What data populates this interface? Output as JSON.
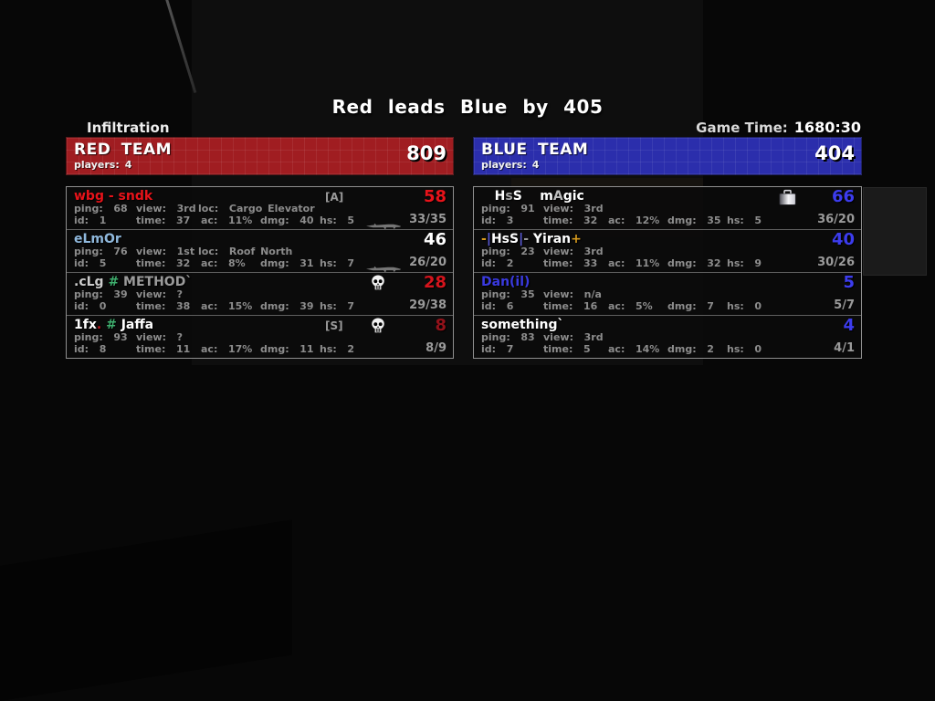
{
  "scene": {
    "title": "Red leads Blue by 405",
    "mode": "Infiltration",
    "game_time_label": "Game Time:",
    "game_time": "1680:30"
  },
  "colors": {
    "red_header": "#a01d21",
    "blue_header": "#2b2eac",
    "red_score_text": "#e8131a",
    "blue_score_text": "#3c3cee",
    "stat_text": "#8c8c8c"
  },
  "icons": {
    "skull": "skull-icon",
    "briefcase": "briefcase-icon",
    "weapon": "weapon-icon"
  },
  "teams": [
    {
      "name": "RED TEAM",
      "score": "809",
      "players_label": "players:",
      "players": "4",
      "rows": [
        {
          "name_segments": [
            {
              "t": "wbg - sndk",
              "c": "#e8131a"
            }
          ],
          "tag": "[A]",
          "skull": false,
          "briefcase": false,
          "weapon": true,
          "score": "58",
          "score_color": "#e8131a",
          "frags": "33/35",
          "stats1": [
            {
              "l": "ping:",
              "v": "68"
            },
            {
              "l": "view:",
              "v": "3rd"
            },
            {
              "l": "loc:",
              "v": "Cargo Elevator"
            }
          ],
          "stats2": [
            {
              "l": "id:",
              "v": "1"
            },
            {
              "l": "time:",
              "v": "37"
            },
            {
              "l": "ac:",
              "v": "11%"
            },
            {
              "l": "dmg:",
              "v": "40"
            },
            {
              "l": "hs:",
              "v": "5"
            }
          ]
        },
        {
          "name_segments": [
            {
              "t": "eLmOr",
              "c": "#8fb8dc"
            }
          ],
          "tag": "",
          "skull": false,
          "briefcase": false,
          "weapon": true,
          "score": "46",
          "score_color": "#ffffff",
          "frags": "26/20",
          "stats1": [
            {
              "l": "ping:",
              "v": "76"
            },
            {
              "l": "view:",
              "v": "1st"
            },
            {
              "l": "loc:",
              "v": "Roof North"
            }
          ],
          "stats2": [
            {
              "l": "id:",
              "v": "5"
            },
            {
              "l": "time:",
              "v": "32"
            },
            {
              "l": "ac:",
              "v": "8%"
            },
            {
              "l": "dmg:",
              "v": "31"
            },
            {
              "l": "hs:",
              "v": "7"
            }
          ]
        },
        {
          "name_segments": [
            {
              "t": ".cLg ",
              "c": "#cccccc"
            },
            {
              "t": "# ",
              "c": "#3fae6e"
            },
            {
              "t": "METHOD`",
              "c": "#9b9b9b"
            }
          ],
          "tag": "",
          "skull": true,
          "briefcase": false,
          "weapon": false,
          "score": "28",
          "score_color": "#d4141c",
          "frags": "29/38",
          "stats1": [
            {
              "l": "ping:",
              "v": "39"
            },
            {
              "l": "view:",
              "v": "?"
            }
          ],
          "stats2": [
            {
              "l": "id:",
              "v": "0"
            },
            {
              "l": "time:",
              "v": "38"
            },
            {
              "l": "ac:",
              "v": "15%"
            },
            {
              "l": "dmg:",
              "v": "39"
            },
            {
              "l": "hs:",
              "v": "7"
            }
          ]
        },
        {
          "name_segments": [
            {
              "t": "1fx",
              "c": "#ffffff"
            },
            {
              "t": ". ",
              "c": "#c0151c"
            },
            {
              "t": "# ",
              "c": "#3fae6e"
            },
            {
              "t": "Jaffa",
              "c": "#ffffff"
            }
          ],
          "tag": "[S]",
          "skull": true,
          "briefcase": false,
          "weapon": false,
          "score": "8",
          "score_color": "#93121a",
          "frags": "8/9",
          "stats1": [
            {
              "l": "ping:",
              "v": "93"
            },
            {
              "l": "view:",
              "v": "?"
            }
          ],
          "stats2": [
            {
              "l": "id:",
              "v": "8"
            },
            {
              "l": "time:",
              "v": "11"
            },
            {
              "l": "ac:",
              "v": "17%"
            },
            {
              "l": "dmg:",
              "v": "11"
            },
            {
              "l": "hs:",
              "v": "2"
            }
          ]
        }
      ]
    },
    {
      "name": "BLUE TEAM",
      "score": "404",
      "players_label": "players:",
      "players": "4",
      "rows": [
        {
          "name_segments": [
            {
              "t": "   H",
              "c": "#ffffff"
            },
            {
              "t": "s",
              "c": "#a8a8a8"
            },
            {
              "t": "S",
              "c": "#ffffff"
            },
            {
              "t": "    m",
              "c": "#ffffff"
            },
            {
              "t": "A",
              "c": "#bcbcbc"
            },
            {
              "t": "gic",
              "c": "#ffffff"
            }
          ],
          "tag": "",
          "skull": false,
          "briefcase": true,
          "weapon": false,
          "score": "66",
          "score_color": "#3c3cee",
          "frags": "36/20",
          "stats1": [
            {
              "l": "ping:",
              "v": "91"
            },
            {
              "l": "view:",
              "v": "3rd"
            }
          ],
          "stats2": [
            {
              "l": "id:",
              "v": "3"
            },
            {
              "l": "time:",
              "v": "32"
            },
            {
              "l": "ac:",
              "v": "12%"
            },
            {
              "l": "dmg:",
              "v": "35"
            },
            {
              "l": "hs:",
              "v": "5"
            }
          ]
        },
        {
          "name_segments": [
            {
              "t": "-",
              "c": "#d79b1e"
            },
            {
              "t": "|",
              "c": "#5b5bd8"
            },
            {
              "t": "HsS",
              "c": "#ffffff"
            },
            {
              "t": "|",
              "c": "#5b5bd8"
            },
            {
              "t": "- ",
              "c": "#9a9a9a"
            },
            {
              "t": "Yiran",
              "c": "#ffffff"
            },
            {
              "t": "+",
              "c": "#d79b1e"
            }
          ],
          "tag": "",
          "skull": false,
          "briefcase": false,
          "weapon": false,
          "score": "40",
          "score_color": "#3c3cee",
          "frags": "30/26",
          "stats1": [
            {
              "l": "ping:",
              "v": "23"
            },
            {
              "l": "view:",
              "v": "3rd"
            }
          ],
          "stats2": [
            {
              "l": "id:",
              "v": "2"
            },
            {
              "l": "time:",
              "v": "33"
            },
            {
              "l": "ac:",
              "v": "11%"
            },
            {
              "l": "dmg:",
              "v": "32"
            },
            {
              "l": "hs:",
              "v": "9"
            }
          ]
        },
        {
          "name_segments": [
            {
              "t": "Dan(il)",
              "c": "#3a3ae0"
            }
          ],
          "tag": "",
          "skull": false,
          "briefcase": false,
          "weapon": false,
          "score": "5",
          "score_color": "#3c3cee",
          "frags": "5/7",
          "stats1": [
            {
              "l": "ping:",
              "v": "35"
            },
            {
              "l": "view:",
              "v": "n/a"
            }
          ],
          "stats2": [
            {
              "l": "id:",
              "v": "6"
            },
            {
              "l": "time:",
              "v": "16"
            },
            {
              "l": "ac:",
              "v": "5%"
            },
            {
              "l": "dmg:",
              "v": "7"
            },
            {
              "l": "hs:",
              "v": "0"
            }
          ]
        },
        {
          "name_segments": [
            {
              "t": "something`",
              "c": "#ffffff"
            }
          ],
          "tag": "",
          "skull": false,
          "briefcase": false,
          "weapon": false,
          "score": "4",
          "score_color": "#3c3cee",
          "frags": "4/1",
          "stats1": [
            {
              "l": "ping:",
              "v": "83"
            },
            {
              "l": "view:",
              "v": "3rd"
            }
          ],
          "stats2": [
            {
              "l": "id:",
              "v": "7"
            },
            {
              "l": "time:",
              "v": "5"
            },
            {
              "l": "ac:",
              "v": "14%"
            },
            {
              "l": "dmg:",
              "v": "2"
            },
            {
              "l": "hs:",
              "v": "0"
            }
          ]
        }
      ]
    }
  ]
}
